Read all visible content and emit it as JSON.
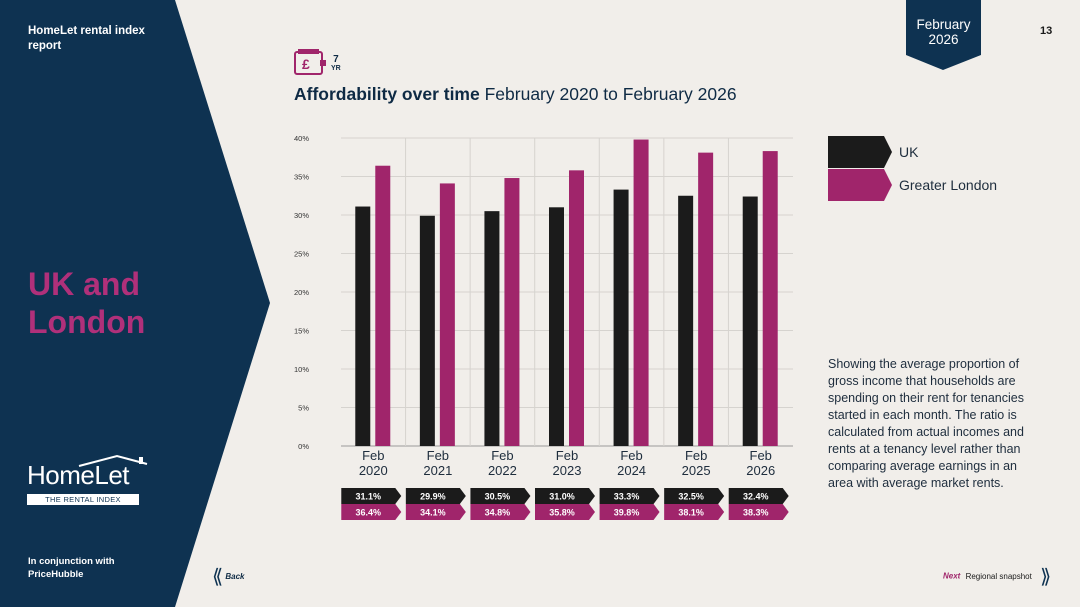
{
  "colors": {
    "navy": "#0e3251",
    "magenta": "#a0256b",
    "uk_bar": "#1b1b1b",
    "background": "#f1eeea"
  },
  "sidebar": {
    "report_title": "HomeLet rental index report",
    "section_title": "UK and London",
    "logo_word": "HomeLet",
    "logo_sub": "THE RENTAL INDEX",
    "conjunction": "In conjunction with PriceHubble"
  },
  "header": {
    "date_month": "February",
    "date_year": "2026",
    "page_number": "13",
    "period_icon": "pound-wallet-icon",
    "period_value": "7",
    "period_unit": "YR",
    "heading_bold": "Affordability over time",
    "heading_rest": "February 2020 to February 2026"
  },
  "chart_data": {
    "type": "bar",
    "title": "Affordability over time February 2020 to February 2026",
    "categories": [
      [
        "Feb",
        "2020"
      ],
      [
        "Feb",
        "2021"
      ],
      [
        "Feb",
        "2022"
      ],
      [
        "Feb",
        "2023"
      ],
      [
        "Feb",
        "2024"
      ],
      [
        "Feb",
        "2025"
      ],
      [
        "Feb",
        "2026"
      ]
    ],
    "series": [
      {
        "name": "UK",
        "values": [
          31.1,
          29.9,
          30.5,
          31.0,
          33.3,
          32.5,
          32.4
        ],
        "labels": [
          "31.1%",
          "29.9%",
          "30.5%",
          "31.0%",
          "33.3%",
          "32.5%",
          "32.4%"
        ],
        "color": "#1b1b1b"
      },
      {
        "name": "Greater London",
        "values": [
          36.4,
          34.1,
          34.8,
          35.8,
          39.8,
          38.1,
          38.3
        ],
        "labels": [
          "36.4%",
          "34.1%",
          "34.8%",
          "35.8%",
          "39.8%",
          "38.1%",
          "38.3%"
        ],
        "color": "#a0256b"
      }
    ],
    "yticks": [
      "0%",
      "5%",
      "10%",
      "15%",
      "20%",
      "25%",
      "30%",
      "35%",
      "40%"
    ],
    "ylim": [
      0,
      40
    ],
    "grid": true,
    "legend_position": "right"
  },
  "description": "Showing the average proportion of gross income that households are spending on their rent for tenancies started in each month. The ratio is calculated from actual incomes and rents at a tenancy level rather than comparing average earnings in an area with average market rents.",
  "navigation": {
    "back_label": "Back",
    "next_label": "Next",
    "next_target": "Regional snapshot",
    "back_icon": "double-chevron-left-icon",
    "next_icon": "double-chevron-right-icon"
  }
}
